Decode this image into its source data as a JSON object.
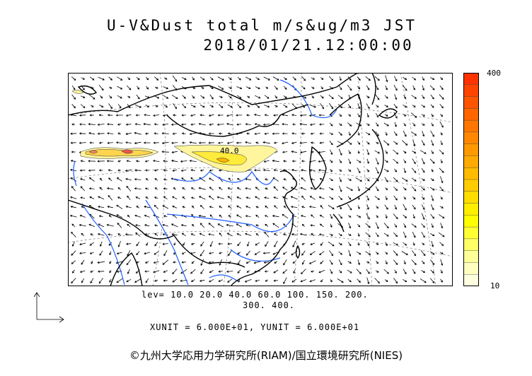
{
  "title": {
    "line1": "U-V&Dust total m/s&ug/m3 JST",
    "line2": "2018/01/21.12:00:00"
  },
  "colorbar": {
    "max_label": "400",
    "min_label": "10",
    "colors": [
      "#ffffe0",
      "#ffffc0",
      "#ffff99",
      "#ffff66",
      "#ffff33",
      "#ffff00",
      "#ffee00",
      "#ffdd00",
      "#ffcc00",
      "#ffbb00",
      "#ffaa00",
      "#ff9900",
      "#ff8800",
      "#ff7700",
      "#ff6600",
      "#ff5500",
      "#ff4400",
      "#ff3300"
    ]
  },
  "contour_label": "40.0",
  "levels": {
    "line1": "lev= 10.0 20.0 40.0 60.0 100. 150. 200.",
    "line2": "300. 400."
  },
  "units": "XUNIT = 6.000E+01, YUNIT = 6.000E+01",
  "credit": "©九州大学応用力学研究所(RIAM)/国立環境研究所(NIES)",
  "colors": {
    "coastline": "#000000",
    "rivers": "#1f5fff",
    "dust_low": "#fff176",
    "dust_high": "#e53935"
  }
}
